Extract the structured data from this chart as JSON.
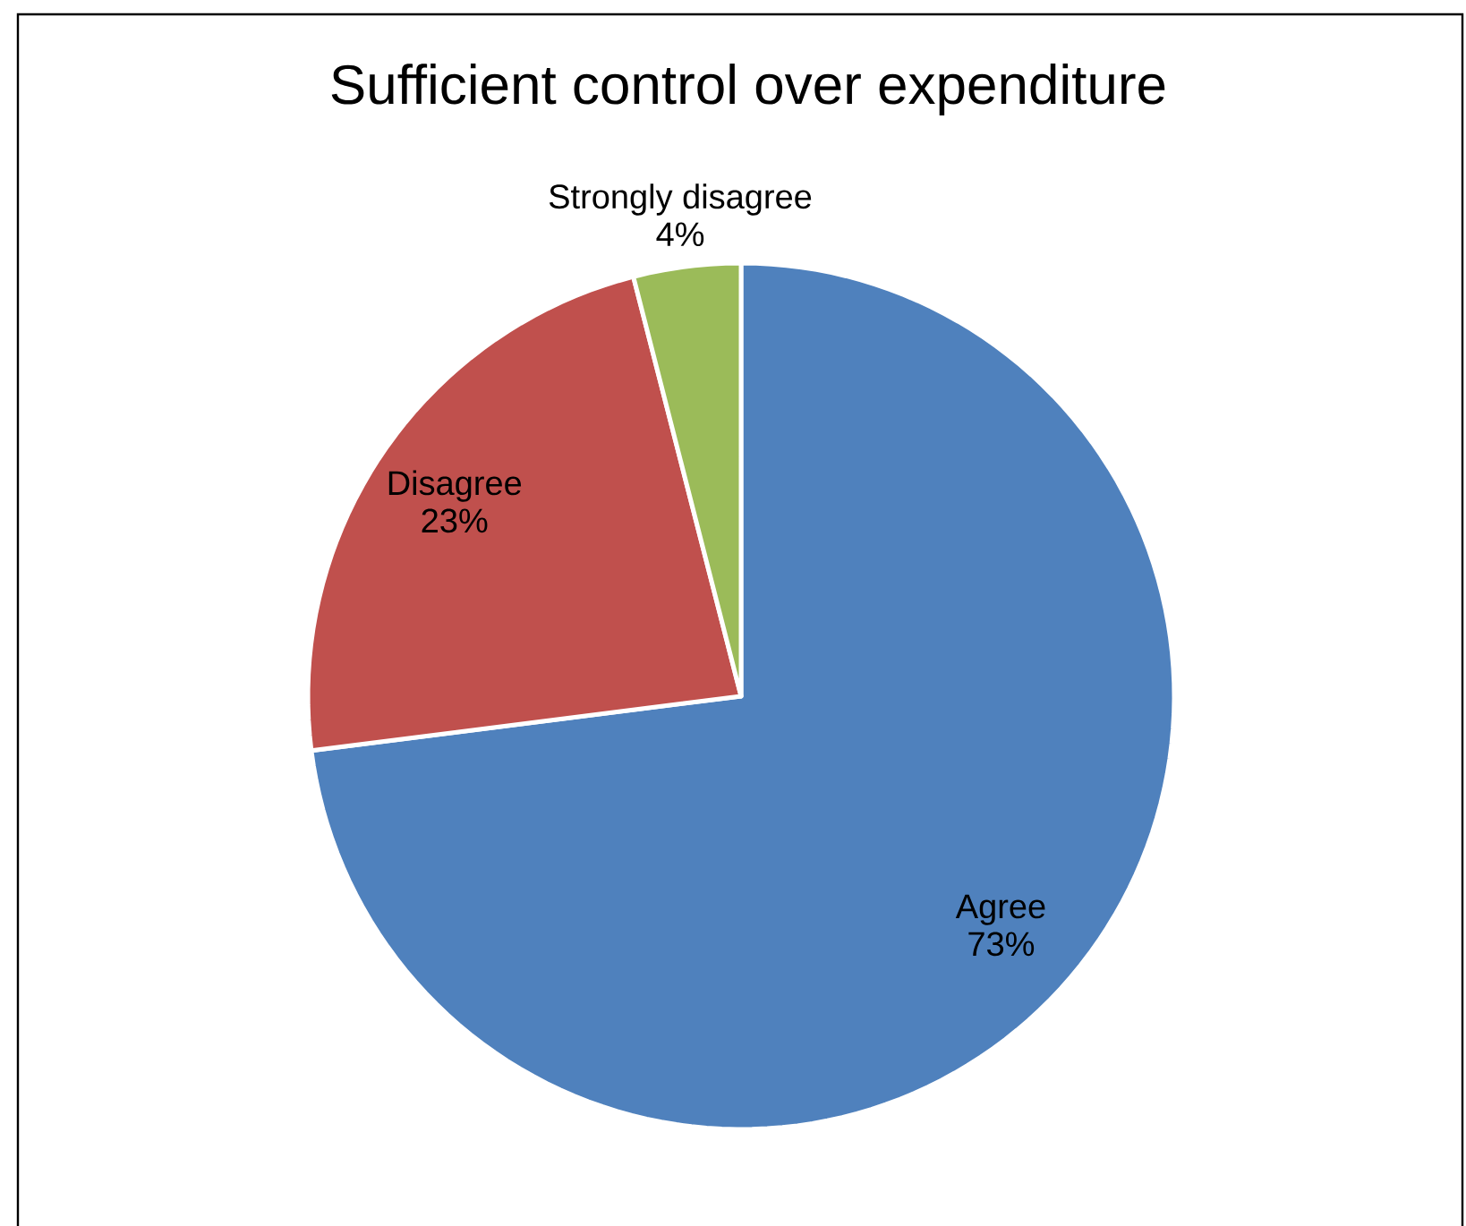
{
  "chart_data": {
    "type": "pie",
    "title": "Sufficient control over expenditure",
    "categories": [
      "Agree",
      "Disagree",
      "Strongly disagree"
    ],
    "values": [
      73,
      23,
      4
    ],
    "value_labels": [
      "73%",
      "23%",
      "4%"
    ],
    "colors": [
      "#4f81bd",
      "#c0504d",
      "#9bbb59"
    ]
  }
}
